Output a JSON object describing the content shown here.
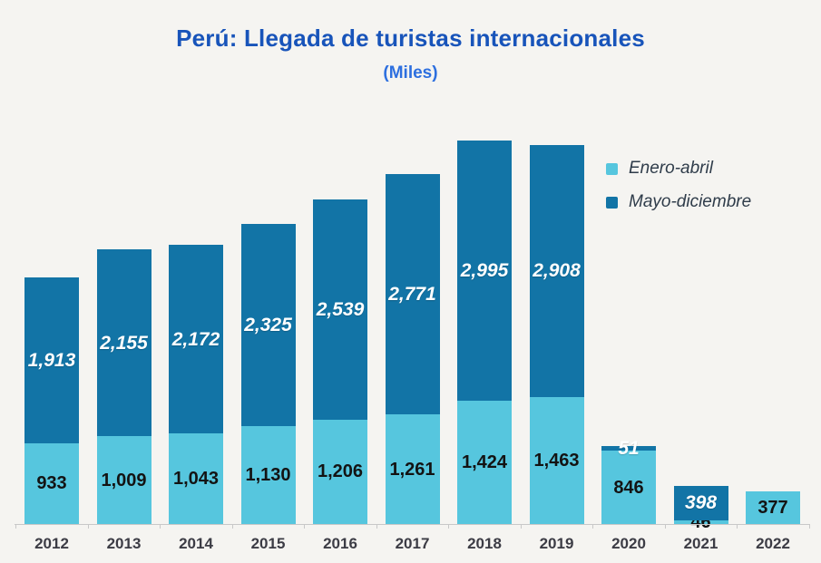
{
  "title": "Perú: Llegada de turistas internacionales",
  "subtitle": "(Miles)",
  "legend": {
    "position": "right",
    "items": [
      {
        "label": "Enero-abril",
        "color": "#56c6de"
      },
      {
        "label": "Mayo-diciembre",
        "color": "#1274a6"
      }
    ]
  },
  "chart_data": {
    "type": "bar",
    "stacked": true,
    "title": "Perú: Llegada de turistas internacionales",
    "subtitle": "(Miles)",
    "xlabel": "",
    "ylabel": "",
    "ylim": [
      0,
      4500
    ],
    "grid": false,
    "legend_position": "right",
    "categories": [
      "2012",
      "2013",
      "2014",
      "2015",
      "2016",
      "2017",
      "2018",
      "2019",
      "2020",
      "2021",
      "2022"
    ],
    "series": [
      {
        "name": "Enero-abril",
        "color": "#56c6de",
        "values": [
          933,
          1009,
          1043,
          1130,
          1206,
          1261,
          1424,
          1463,
          846,
          46,
          377
        ],
        "labels": [
          "933",
          "1,009",
          "1,043",
          "1,130",
          "1,206",
          "1,261",
          "1,424",
          "1,463",
          "846",
          "46",
          "377"
        ]
      },
      {
        "name": "Mayo-diciembre",
        "color": "#1274a6",
        "values": [
          1913,
          2155,
          2172,
          2325,
          2539,
          2771,
          2995,
          2908,
          51,
          398,
          0
        ],
        "labels": [
          "1,913",
          "2,155",
          "2,172",
          "2,325",
          "2,539",
          "2,771",
          "2,995",
          "2,908",
          "51",
          "398",
          ""
        ]
      }
    ],
    "totals": [
      2846,
      3164,
      3215,
      3455,
      3745,
      4032,
      4419,
      4371,
      897,
      444,
      377
    ]
  },
  "colors": {
    "background": "#f5f4f1",
    "title": "#1854ba",
    "subtitle": "#2d6fdf",
    "axis": "#c8c8c8",
    "year_label": "#3c3c45",
    "label_on_dark": "#ffffff",
    "label_on_light": "#131313"
  }
}
